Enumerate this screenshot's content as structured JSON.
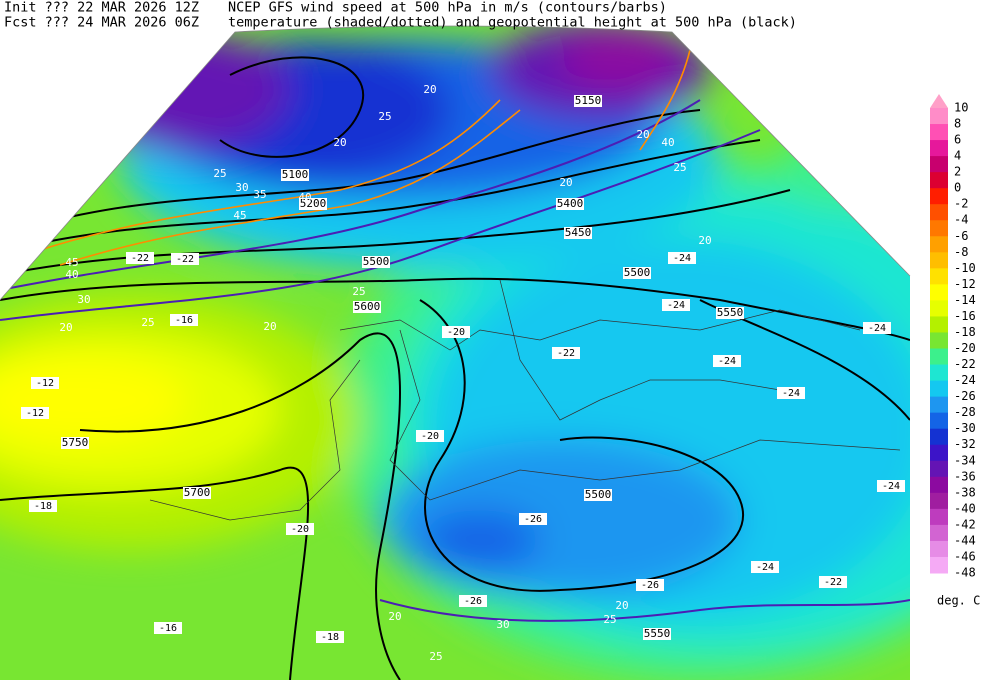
{
  "header": {
    "init": "Init  ??? 22 MAR 2026 12Z",
    "fcst": "Fcst ??? 24 MAR 2026 06Z",
    "line1": "NCEP GFS wind speed at 500 hPa in m/s (contours/barbs)",
    "line2": "temperature (shaded/dotted) and geopotential height at 500 hPa (black)"
  },
  "colorbar": {
    "ticks": [
      10,
      8,
      6,
      4,
      2,
      0,
      -2,
      -4,
      -6,
      -8,
      -10,
      -12,
      -14,
      -16,
      -18,
      -20,
      -22,
      -24,
      -26,
      -28,
      -30,
      -32,
      -34,
      -36,
      -38,
      -40,
      -42,
      -44,
      -46,
      -48
    ],
    "colors": [
      "#ff8cc8",
      "#ff50b4",
      "#e6189b",
      "#c8006e",
      "#dc0032",
      "#ff1e00",
      "#ff5000",
      "#ff7800",
      "#ffa000",
      "#ffbe00",
      "#ffe100",
      "#ffff00",
      "#e6ff00",
      "#b4f000",
      "#78e632",
      "#3cf08c",
      "#1ee6d2",
      "#14c8f0",
      "#1e96f0",
      "#1464e6",
      "#1432d2",
      "#3c14c8",
      "#6414b4",
      "#8c0aa0",
      "#a01ea0",
      "#be3cbe",
      "#d264d2",
      "#e68ce6",
      "#f5aaf5"
    ],
    "unit": "deg. C"
  },
  "map": {
    "geopotential_labels": [
      5150,
      5100,
      5200,
      5400,
      5450,
      5500,
      5500,
      5550,
      5600,
      5750,
      5700,
      5500,
      5550
    ],
    "wind_labels": [
      20,
      25,
      20,
      25,
      30,
      35,
      40,
      45,
      40,
      20,
      20,
      25,
      20,
      25,
      20,
      25,
      20,
      30,
      40,
      45,
      20,
      25,
      20,
      25,
      30
    ],
    "temperature_labels": [
      -12,
      -12,
      -16,
      -18,
      -20,
      -20,
      -22,
      -24,
      -24,
      -24,
      -24,
      -24,
      -24,
      -22,
      -24,
      -26,
      -26,
      -26,
      -16,
      -18,
      -20,
      -22,
      -22
    ]
  }
}
